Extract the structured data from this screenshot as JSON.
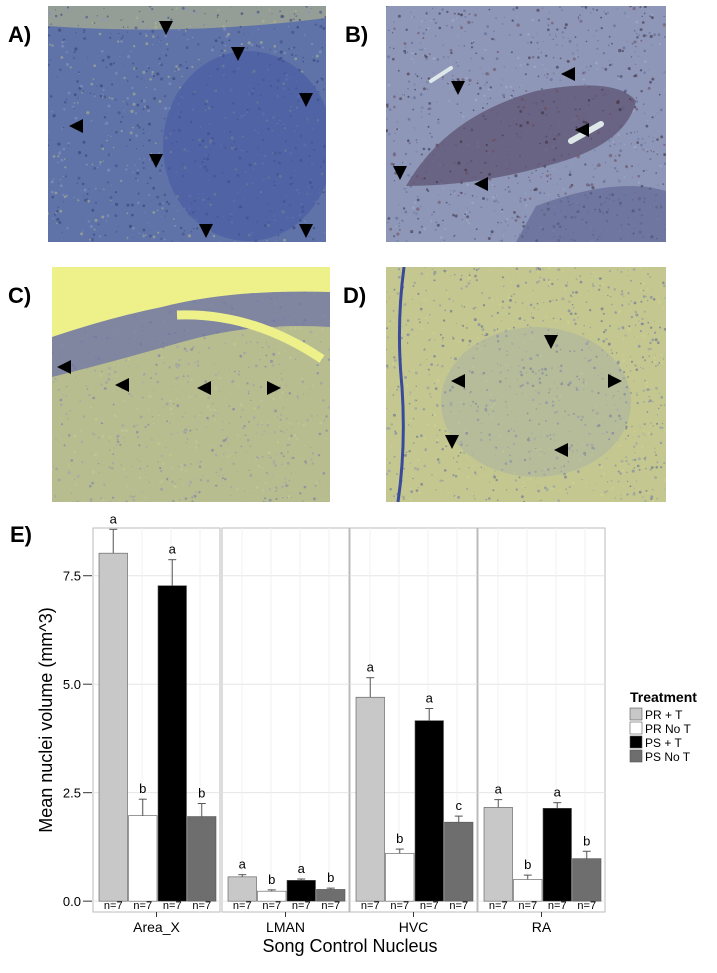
{
  "panels": [
    {
      "label": "A)",
      "bg": "#4a5a8c",
      "tissue": "#5f73a8",
      "region": "#4456a0"
    },
    {
      "label": "B)",
      "bg": "#7f8bb0",
      "tissue": "#8e97b8",
      "region": "#5b4e6e"
    },
    {
      "label": "C)",
      "bg": "#a9b08a",
      "tissue": "#b8bd90",
      "region": "#6a6fa6"
    },
    {
      "label": "D)",
      "bg": "#b9bf8e",
      "tissue": "#c4c890",
      "region": "#9ea6b0"
    }
  ],
  "chart_data": {
    "type": "bar",
    "panel_label": "E)",
    "ylabel": "Mean nuclei volume (mm^3)",
    "xlabel": "Song Control Nucleus",
    "ylim": [
      -0.25,
      8.6
    ],
    "yticks": [
      "0.0",
      "2.5",
      "5.0",
      "7.5"
    ],
    "ytick_values": [
      0,
      2.5,
      5.0,
      7.5
    ],
    "legend": {
      "title": "Treatment",
      "placement": "right",
      "entries": [
        "PR + T",
        "PR No T",
        "PS + T",
        "PS No T"
      ]
    },
    "colors": [
      "#c8c8c8",
      "#ffffff",
      "#000000",
      "#6e6e6e"
    ],
    "facets": [
      {
        "name": "Area_X",
        "series": [
          {
            "name": "PR + T",
            "value": 8.02,
            "error": 0.55,
            "letter": "a",
            "n": "n=7"
          },
          {
            "name": "PR No T",
            "value": 1.97,
            "error": 0.38,
            "letter": "b",
            "n": "n=7"
          },
          {
            "name": "PS + T",
            "value": 7.27,
            "error": 0.6,
            "letter": "a",
            "n": "n=7"
          },
          {
            "name": "PS No T",
            "value": 1.95,
            "error": 0.3,
            "letter": "b",
            "n": "n=7"
          }
        ]
      },
      {
        "name": "LMAN",
        "series": [
          {
            "name": "PR + T",
            "value": 0.56,
            "error": 0.05,
            "letter": "a",
            "n": "n=7"
          },
          {
            "name": "PR No T",
            "value": 0.23,
            "error": 0.03,
            "letter": "b",
            "n": "n=7"
          },
          {
            "name": "PS + T",
            "value": 0.48,
            "error": 0.03,
            "letter": "a",
            "n": "n=7"
          },
          {
            "name": "PS No T",
            "value": 0.27,
            "error": 0.03,
            "letter": "b",
            "n": "n=7"
          }
        ]
      },
      {
        "name": "HVC",
        "series": [
          {
            "name": "PR + T",
            "value": 4.7,
            "error": 0.45,
            "letter": "a",
            "n": "n=7"
          },
          {
            "name": "PR No T",
            "value": 1.1,
            "error": 0.1,
            "letter": "b",
            "n": "n=7"
          },
          {
            "name": "PS + T",
            "value": 4.16,
            "error": 0.28,
            "letter": "a",
            "n": "n=7"
          },
          {
            "name": "PS No T",
            "value": 1.82,
            "error": 0.14,
            "letter": "c",
            "n": "n=7"
          }
        ]
      },
      {
        "name": "RA",
        "series": [
          {
            "name": "PR + T",
            "value": 2.16,
            "error": 0.18,
            "letter": "a",
            "n": "n=7"
          },
          {
            "name": "PR No T",
            "value": 0.5,
            "error": 0.1,
            "letter": "b",
            "n": "n=7"
          },
          {
            "name": "PS + T",
            "value": 2.14,
            "error": 0.13,
            "letter": "a",
            "n": "n=7"
          },
          {
            "name": "PS No T",
            "value": 0.98,
            "error": 0.17,
            "letter": "b",
            "n": "n=7"
          }
        ]
      }
    ]
  }
}
